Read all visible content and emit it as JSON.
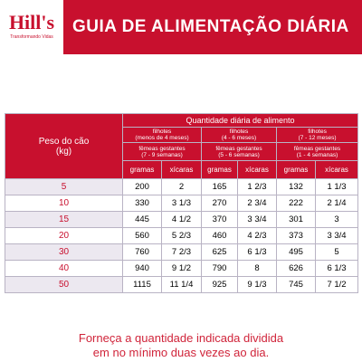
{
  "header": {
    "logo": "Hill's",
    "logo_tagline": "Transformando Vidas",
    "title": "GUIA DE ALIMENTAÇÃO DIÁRIA"
  },
  "table": {
    "row_header": [
      "Peso do cão",
      "(kg)"
    ],
    "group_title": "Quantidade diária de alimento",
    "groups": [
      {
        "puppy": [
          "filhotes",
          "(menos de 4 meses)"
        ],
        "female": [
          "fêmeas gestantes",
          "(7 - 9 semanas)"
        ],
        "units": [
          "gramas",
          "xícaras"
        ]
      },
      {
        "puppy": [
          "filhotes",
          "(4 - 6 meses)"
        ],
        "female": [
          "fêmeas gestantes",
          "(5 - 6 semanas)"
        ],
        "units": [
          "gramas",
          "xícaras"
        ]
      },
      {
        "puppy": [
          "filhotes",
          "(7 - 12 meses)"
        ],
        "female": [
          "fêmeas gestantes",
          "(1 - 4 semanas)"
        ],
        "units": [
          "gramas",
          "xícaras"
        ]
      }
    ],
    "rows": [
      [
        "5",
        "200",
        "2",
        "165",
        "1 2/3",
        "132",
        "1 1/3"
      ],
      [
        "10",
        "330",
        "3 1/3",
        "270",
        "2 3/4",
        "222",
        "2 1/4"
      ],
      [
        "15",
        "445",
        "4 1/2",
        "370",
        "3 3/4",
        "301",
        "3"
      ],
      [
        "20",
        "560",
        "5 2/3",
        "460",
        "4 2/3",
        "373",
        "3 3/4"
      ],
      [
        "30",
        "760",
        "7 2/3",
        "625",
        "6 1/3",
        "495",
        "5"
      ],
      [
        "40",
        "940",
        "9 1/2",
        "790",
        "8",
        "626",
        "6 1/3"
      ],
      [
        "50",
        "1115",
        "11 1/4",
        "925",
        "9 1/3",
        "745",
        "7 1/2"
      ]
    ]
  },
  "footer": [
    "Forneça a quantidade indicada dividida",
    "em no mínimo duas vezes ao dia."
  ]
}
